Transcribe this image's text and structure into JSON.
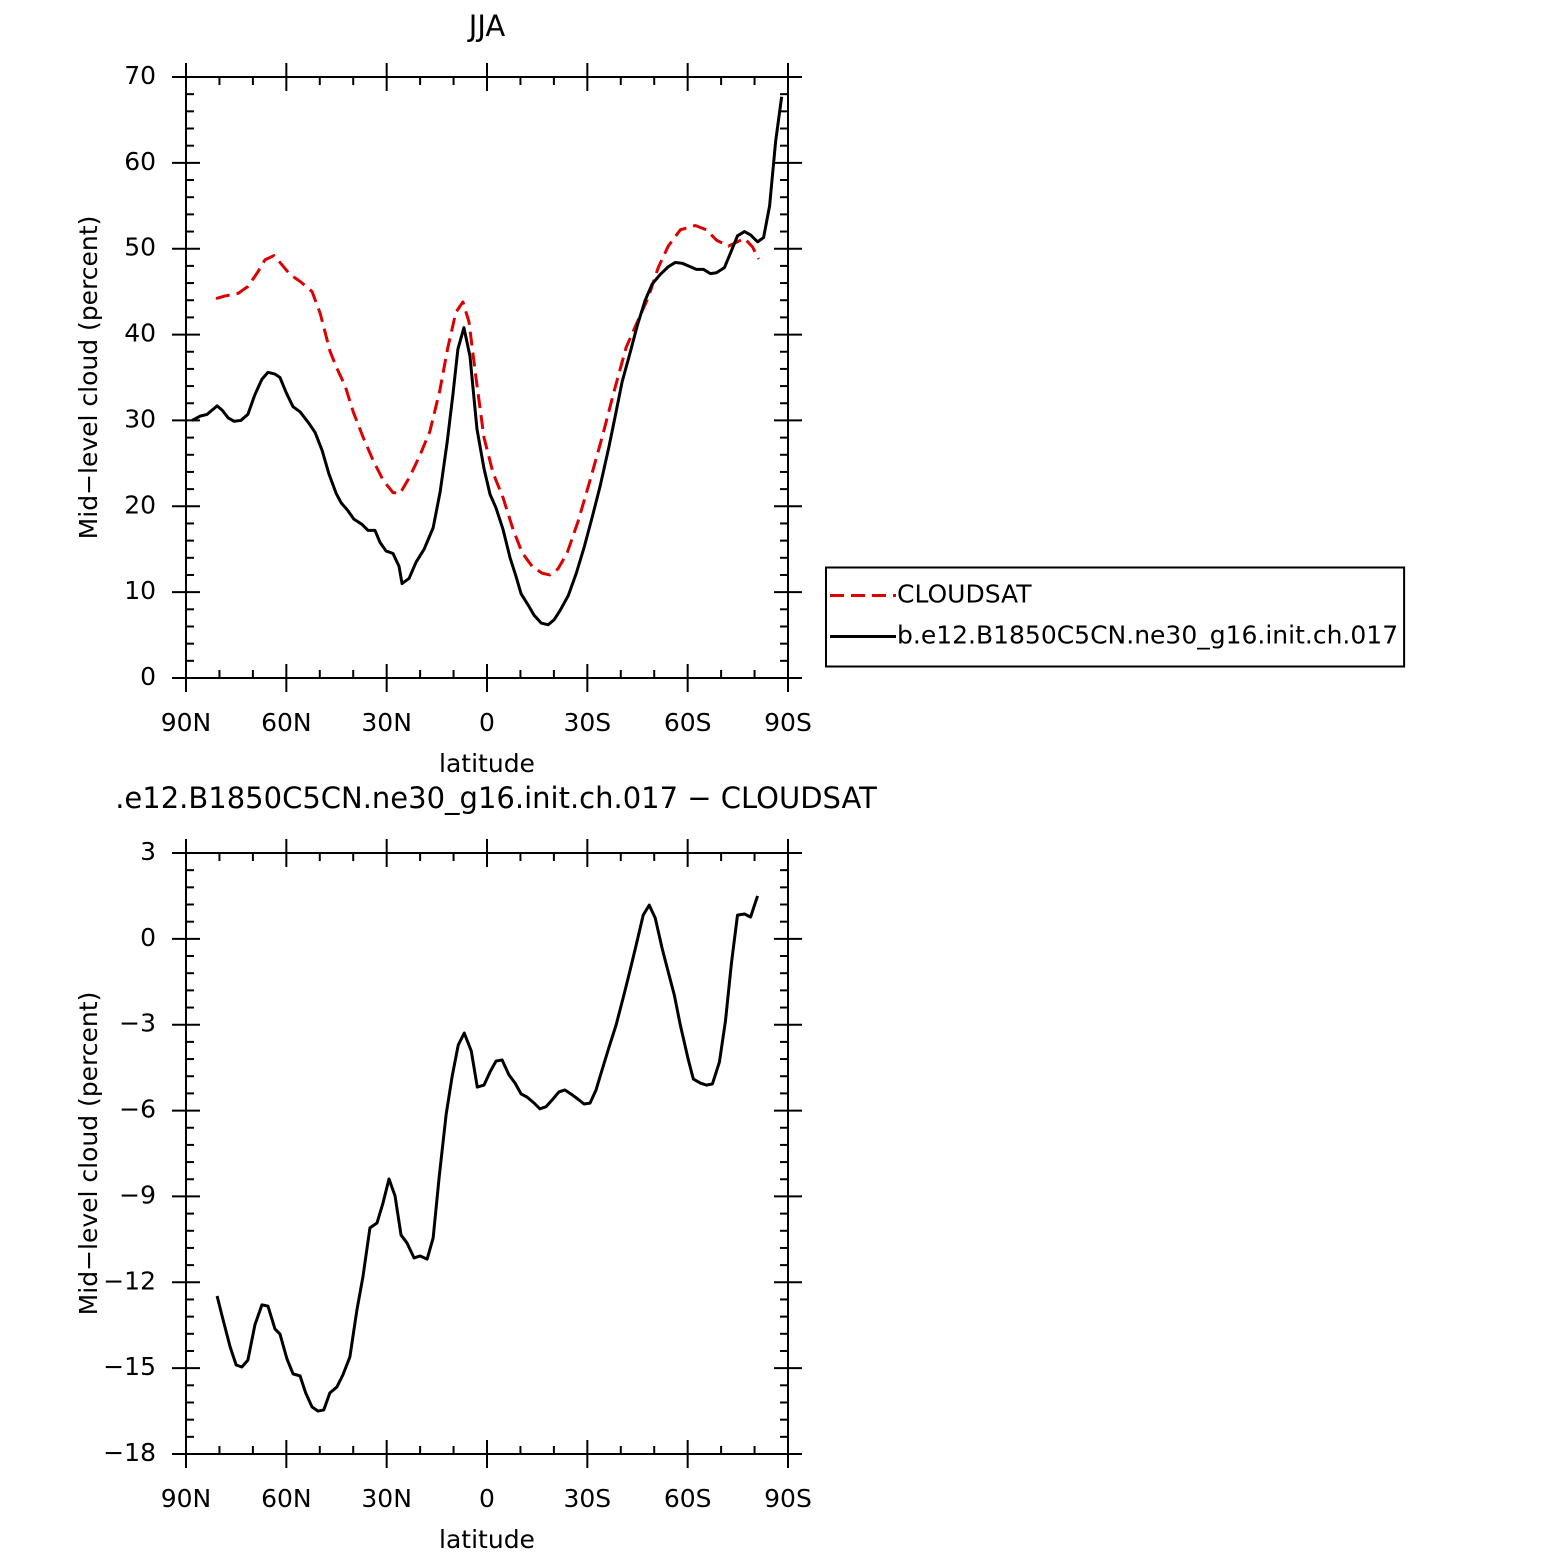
{
  "chart_data": [
    {
      "type": "line",
      "title": "JJA",
      "xlabel": "latitude",
      "ylabel": "Mid−level cloud (percent)",
      "xlim": [
        90,
        -90
      ],
      "xticks": [
        {
          "value": 90,
          "label": "90N"
        },
        {
          "value": 60,
          "label": "60N"
        },
        {
          "value": 30,
          "label": "30N"
        },
        0,
        {
          "value": -30,
          "label": "30S"
        },
        {
          "value": -60,
          "label": "60S"
        },
        {
          "value": -90,
          "label": "90S"
        }
      ],
      "ylim": [
        0,
        70
      ],
      "yticks": [
        0,
        10,
        20,
        30,
        40,
        50,
        60,
        70
      ],
      "legend": "right",
      "series": [
        {
          "name": "CLOUDSAT",
          "color": "#dd0000",
          "linestyle": "dashed",
          "x": [
            81,
            78.3,
            74.4,
            71.5,
            68.5,
            66.4,
            63.7,
            61.9,
            58.9,
            55.9,
            52.3,
            49.9,
            46.9,
            44.8,
            42.4,
            40,
            37,
            34,
            31,
            28.1,
            26,
            23,
            20,
            17.1,
            14.1,
            11.7,
            9.3,
            7.2,
            5.4,
            3.3,
            0.9,
            -1.8,
            -4.8,
            -7.8,
            -10.5,
            -13.5,
            -16.5,
            -18.8,
            -21.2,
            -23.9,
            -27.2,
            -30.8,
            -34.4,
            -38,
            -41.6,
            -45.2,
            -48.2,
            -51.2,
            -54.2,
            -57.8,
            -62.3,
            -65.6,
            -68.6,
            -72.2,
            -77,
            -79.4,
            -81.2
          ],
          "values": [
            44.2,
            44.5,
            44.8,
            45.6,
            47.3,
            48.7,
            49.2,
            48.4,
            47,
            46.2,
            45,
            42.5,
            38,
            36,
            34,
            31,
            28,
            25.3,
            23,
            21.6,
            21.5,
            23.5,
            26,
            28.7,
            33.5,
            38.5,
            42.6,
            43.8,
            41.5,
            35,
            28,
            23.9,
            21,
            17.3,
            14.6,
            13,
            12.2,
            12,
            12.7,
            14.5,
            18.2,
            23,
            28,
            33.4,
            38.5,
            41.7,
            44.3,
            47.8,
            50.3,
            52.2,
            52.7,
            52.2,
            51,
            50.3,
            51.2,
            50.2,
            48.8
          ]
        },
        {
          "name": "b.e12.B1850C5CN.ne30_g16.init.ch.017",
          "color": "#000000",
          "linestyle": "solid",
          "x": [
            88.2,
            85.8,
            83.7,
            80.7,
            79.2,
            77.4,
            75.6,
            73.6,
            71.5,
            69.4,
            67.3,
            65.5,
            63.4,
            61.9,
            60,
            58,
            55.9,
            53.5,
            51.4,
            49.3,
            47.2,
            45.1,
            43.6,
            41.6,
            39.8,
            37.4,
            35.6,
            33.5,
            32,
            30.2,
            28.1,
            26.3,
            25.4,
            23.3,
            21.2,
            18.8,
            16.1,
            14,
            11.9,
            10.2,
            8.7,
            6.9,
            5.1,
            3,
            0.9,
            -0.9,
            -2.7,
            -4.8,
            -6.9,
            -8.7,
            -10.2,
            -12.3,
            -14.1,
            -16.2,
            -18.3,
            -20.1,
            -21.9,
            -24.3,
            -26.7,
            -29.1,
            -31.5,
            -33.8,
            -36.5,
            -38.6,
            -40.4,
            -42.8,
            -44.9,
            -47.3,
            -49.4,
            -51.8,
            -54.2,
            -56.3,
            -58.4,
            -60.8,
            -62.6,
            -64.7,
            -66.8,
            -68.6,
            -71,
            -72.8,
            -74.9,
            -77,
            -78.8,
            -80.9,
            -82.7,
            -84.5,
            -86.3,
            -88.1
          ],
          "values": [
            30,
            30.5,
            30.7,
            31.7,
            31.2,
            30.3,
            29.9,
            30,
            30.7,
            33,
            34.8,
            35.6,
            35.4,
            35,
            33.2,
            31.6,
            31,
            29.8,
            28.6,
            26.5,
            23.7,
            21.5,
            20.4,
            19.5,
            18.5,
            17.9,
            17.2,
            17.2,
            15.8,
            14.8,
            14.5,
            13,
            11,
            11.6,
            13.5,
            15,
            17.5,
            21.7,
            27.5,
            33,
            38.3,
            40.8,
            37.5,
            29,
            24.4,
            21.4,
            19.8,
            17.3,
            14,
            11.8,
            9.8,
            8.5,
            7.3,
            6.4,
            6.2,
            6.8,
            7.9,
            9.6,
            12.2,
            15.3,
            18.8,
            22.3,
            27,
            31,
            34.5,
            37.9,
            41,
            44,
            45.9,
            47,
            47.9,
            48.4,
            48.3,
            47.9,
            47.6,
            47.6,
            47.1,
            47.2,
            47.8,
            49.5,
            51.5,
            52,
            51.6,
            50.8,
            51.3,
            55,
            62.5,
            67.7
          ]
        }
      ]
    },
    {
      "type": "line",
      "title": ".e12.B1850C5CN.ne30_g16.init.ch.017 − CLOUDSAT",
      "xlabel": "latitude",
      "ylabel": "Mid−level cloud (percent)",
      "xlim": [
        90,
        -90
      ],
      "xticks": [
        {
          "value": 90,
          "label": "90N"
        },
        {
          "value": 60,
          "label": "60N"
        },
        {
          "value": 30,
          "label": "30N"
        },
        0,
        {
          "value": -30,
          "label": "30S"
        },
        {
          "value": -60,
          "label": "60S"
        },
        {
          "value": -90,
          "label": "90S"
        }
      ],
      "ylim": [
        -18,
        3
      ],
      "yticks": [
        {
          "value": -18,
          "label": "−18"
        },
        {
          "value": -15,
          "label": "−15"
        },
        {
          "value": -12,
          "label": "−12"
        },
        {
          "value": -9,
          "label": "−9"
        },
        {
          "value": -6,
          "label": "−6"
        },
        {
          "value": -3,
          "label": "−3"
        },
        0,
        3
      ],
      "series": [
        {
          "color": "#000000",
          "linestyle": "solid",
          "x": [
            80.7,
            79.2,
            76.8,
            75,
            73.3,
            71.5,
            69.4,
            67.3,
            65.5,
            63.4,
            61.9,
            59.8,
            58,
            55.9,
            54.2,
            52.3,
            50.5,
            48.8,
            47,
            44.9,
            43.1,
            41,
            38.9,
            37.1,
            35,
            32.9,
            31.1,
            29.3,
            27.5,
            25.7,
            23.9,
            21.8,
            20,
            17.9,
            16.1,
            14.3,
            12.2,
            10.4,
            8.6,
            6.8,
            4.7,
            2.9,
            0.9,
            -0.9,
            -2.7,
            -4.5,
            -6.6,
            -8.4,
            -10.2,
            -12,
            -14.1,
            -15.8,
            -17.6,
            -19.7,
            -21.5,
            -23.3,
            -25.1,
            -27.2,
            -29,
            -30.8,
            -32.6,
            -34.4,
            -36.5,
            -38.6,
            -41,
            -42.8,
            -44.9,
            -46.7,
            -48.5,
            -50.3,
            -52.4,
            -54.2,
            -56,
            -57.8,
            -60.2,
            -61.7,
            -63.8,
            -65.6,
            -67.4,
            -69.5,
            -71.3,
            -73.1,
            -74.9,
            -77,
            -78.8,
            -80.9
          ],
          "values": [
            -12.48,
            -13.18,
            -14.26,
            -14.89,
            -14.96,
            -14.72,
            -13.49,
            -12.79,
            -12.83,
            -13.63,
            -13.81,
            -14.68,
            -15.2,
            -15.27,
            -15.87,
            -16.36,
            -16.5,
            -16.46,
            -15.87,
            -15.66,
            -15.24,
            -14.61,
            -12.97,
            -11.81,
            -10.1,
            -9.93,
            -9.23,
            -8.39,
            -8.98,
            -10.35,
            -10.63,
            -11.15,
            -11.08,
            -11.19,
            -10.45,
            -8.32,
            -6.12,
            -4.79,
            -3.71,
            -3.29,
            -3.92,
            -5.18,
            -5.11,
            -4.65,
            -4.27,
            -4.23,
            -4.76,
            -5.04,
            -5.42,
            -5.53,
            -5.74,
            -5.94,
            -5.87,
            -5.6,
            -5.35,
            -5.28,
            -5.42,
            -5.6,
            -5.77,
            -5.74,
            -5.28,
            -4.58,
            -3.78,
            -3.01,
            -1.93,
            -1.09,
            -0.07,
            0.83,
            1.18,
            0.73,
            -0.35,
            -1.16,
            -1.96,
            -3.01,
            -4.23,
            -4.9,
            -5.04,
            -5.11,
            -5.07,
            -4.3,
            -2.87,
            -0.84,
            0.83,
            0.87,
            0.76,
            1.5
          ]
        }
      ]
    }
  ]
}
